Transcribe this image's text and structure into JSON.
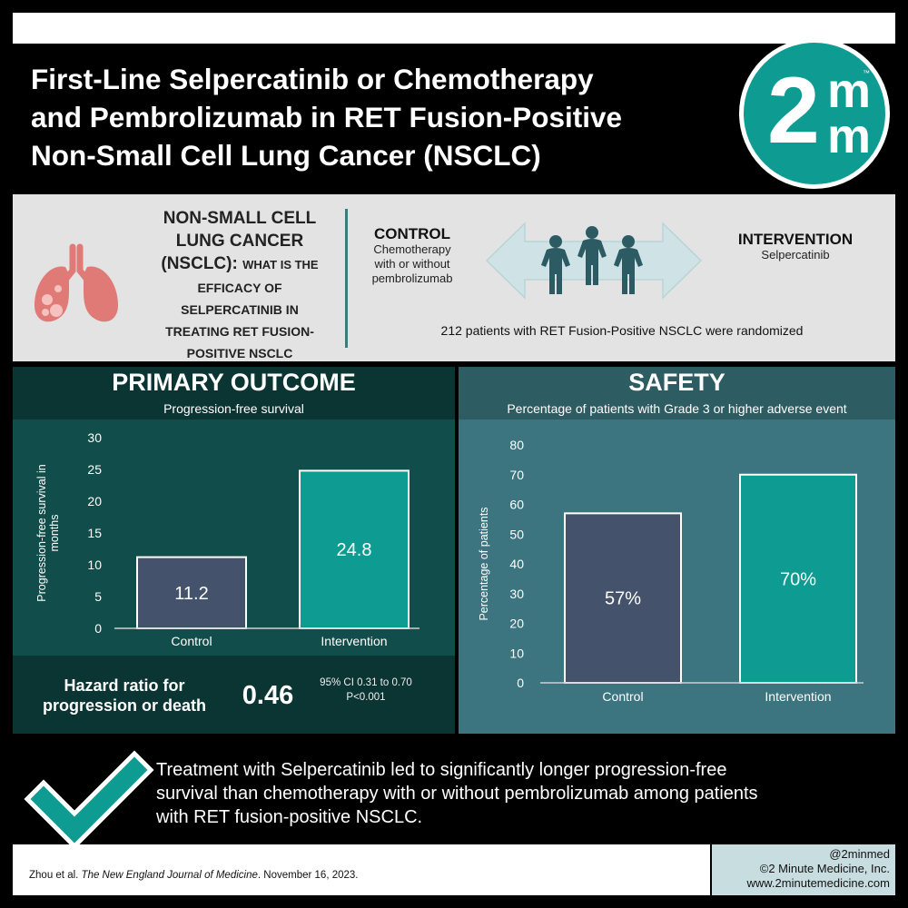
{
  "header": {
    "title_lines": [
      "First-Line Selpercatinib or Chemotherapy",
      "and Pembrolizumab in RET Fusion-Positive",
      "Non-Small Cell Lung Cancer (NSCLC)"
    ],
    "logo": {
      "numeral": "2",
      "letter_top": "m",
      "letter_bottom": "m",
      "trademark": "™",
      "color": "#0d9b92"
    }
  },
  "design": {
    "question_title": [
      "NON-SMALL CELL",
      "LUNG CANCER",
      "(NSCLC): "
    ],
    "question_body": [
      "WHAT IS THE",
      "EFFICACY OF",
      "SELPERCATINIB IN",
      "TREATING RET FUSION-",
      "POSITIVE NSCLC"
    ],
    "control_title": "CONTROL",
    "control_desc": [
      "Chemotherapy",
      "with or without",
      "pembrolizumab"
    ],
    "intervention_title": "INTERVENTION",
    "intervention_desc": "Selpercatinib",
    "randomized": "212 patients with RET Fusion-Positive NSCLC were randomized",
    "icons": [
      "lungs-icon",
      "people-icon",
      "double-arrow-icon"
    ]
  },
  "primary": {
    "title": "PRIMARY OUTCOME",
    "subtitle": "Progression-free survival",
    "hr_label": [
      "Hazard ratio for",
      "progression or death"
    ],
    "hr_value": "0.46",
    "hr_ci": "95% CI 0.31 to 0.70",
    "hr_p": "P<0.001"
  },
  "safety": {
    "title": "SAFETY",
    "subtitle": "Percentage of patients with Grade 3 or higher adverse event"
  },
  "chart_data": [
    {
      "type": "bar",
      "title": "Progression-free survival",
      "categories": [
        "Control",
        "Intervention"
      ],
      "values": [
        11.2,
        24.8
      ],
      "value_labels": [
        "11.2",
        "24.8"
      ],
      "ylabel": [
        "Progression-free survival in",
        "months"
      ],
      "xlabel": "",
      "ylim": [
        0,
        30
      ],
      "yticks": [
        0,
        5,
        10,
        15,
        20,
        25,
        30
      ],
      "grid": false,
      "bar_colors": [
        "#44536b",
        "#0d9b92"
      ]
    },
    {
      "type": "bar",
      "title": "Percentage of patients with Grade 3 or higher adverse event",
      "categories": [
        "Control",
        "Intervention"
      ],
      "values": [
        57,
        70
      ],
      "value_labels": [
        "57%",
        "70%"
      ],
      "ylabel": [
        "Percentage of patients"
      ],
      "xlabel": "",
      "ylim": [
        0,
        80
      ],
      "yticks": [
        0,
        10,
        20,
        30,
        40,
        50,
        60,
        70,
        80
      ],
      "grid": false,
      "bar_colors": [
        "#44536b",
        "#0d9b92"
      ]
    }
  ],
  "conclusion": {
    "lines": [
      "Treatment with Selpercatinib led to significantly longer progression-free",
      "survival than chemotherapy with or without pembrolizumab among patients",
      "with RET fusion-positive NSCLC."
    ],
    "icon": "checkmark-icon"
  },
  "footer": {
    "citation_authors": "Zhou et al. ",
    "citation_journal": "The New England Journal of Medicine",
    "citation_date": ". November 16, 2023.",
    "handle": "@2minmed",
    "copyright": "©2 Minute Medicine, Inc.",
    "website": "www.2minutemedicine.com"
  },
  "colors": {
    "primary_panel": "#114d4a",
    "primary_header": "#0b3533",
    "safety_panel": "#3c7480",
    "safety_header": "#2e5c63",
    "control_bar": "#44536b",
    "intervention_bar": "#0d9b92",
    "design_band": "#e3e3e3",
    "footer_accent": "#c7dde0"
  }
}
